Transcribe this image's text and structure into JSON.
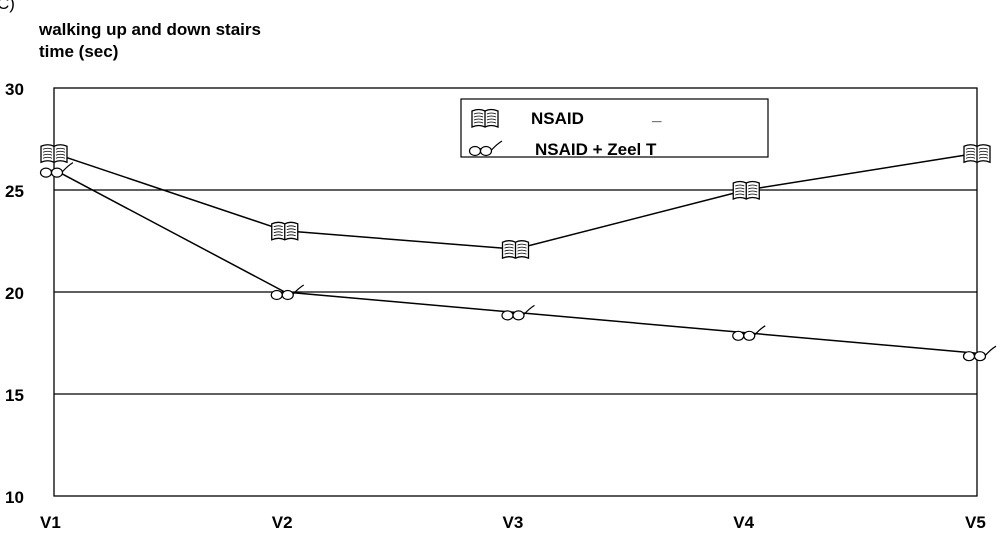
{
  "panel_label": "C)",
  "chart_data": {
    "type": "line",
    "title": "walking up and down stairs",
    "ylabel": "time (sec)",
    "xlabel": "",
    "categories": [
      "V1",
      "V2",
      "V3",
      "V4",
      "V5"
    ],
    "y_ticks": [
      "10",
      "15",
      "20",
      "25",
      "30"
    ],
    "ylim": [
      10,
      30
    ],
    "grid": true,
    "legend_position": "top-right",
    "series": [
      {
        "name": "NSAID",
        "marker": "book-icon",
        "legend_suffix": "_",
        "values": [
          26.8,
          23.0,
          22.1,
          25.0,
          26.8
        ]
      },
      {
        "name": "NSAID + Zeel T",
        "marker": "glasses-icon",
        "values": [
          26.0,
          20.0,
          19.0,
          18.0,
          17.0
        ]
      }
    ],
    "colors": {
      "line": "#000000",
      "background": "#ffffff"
    }
  }
}
